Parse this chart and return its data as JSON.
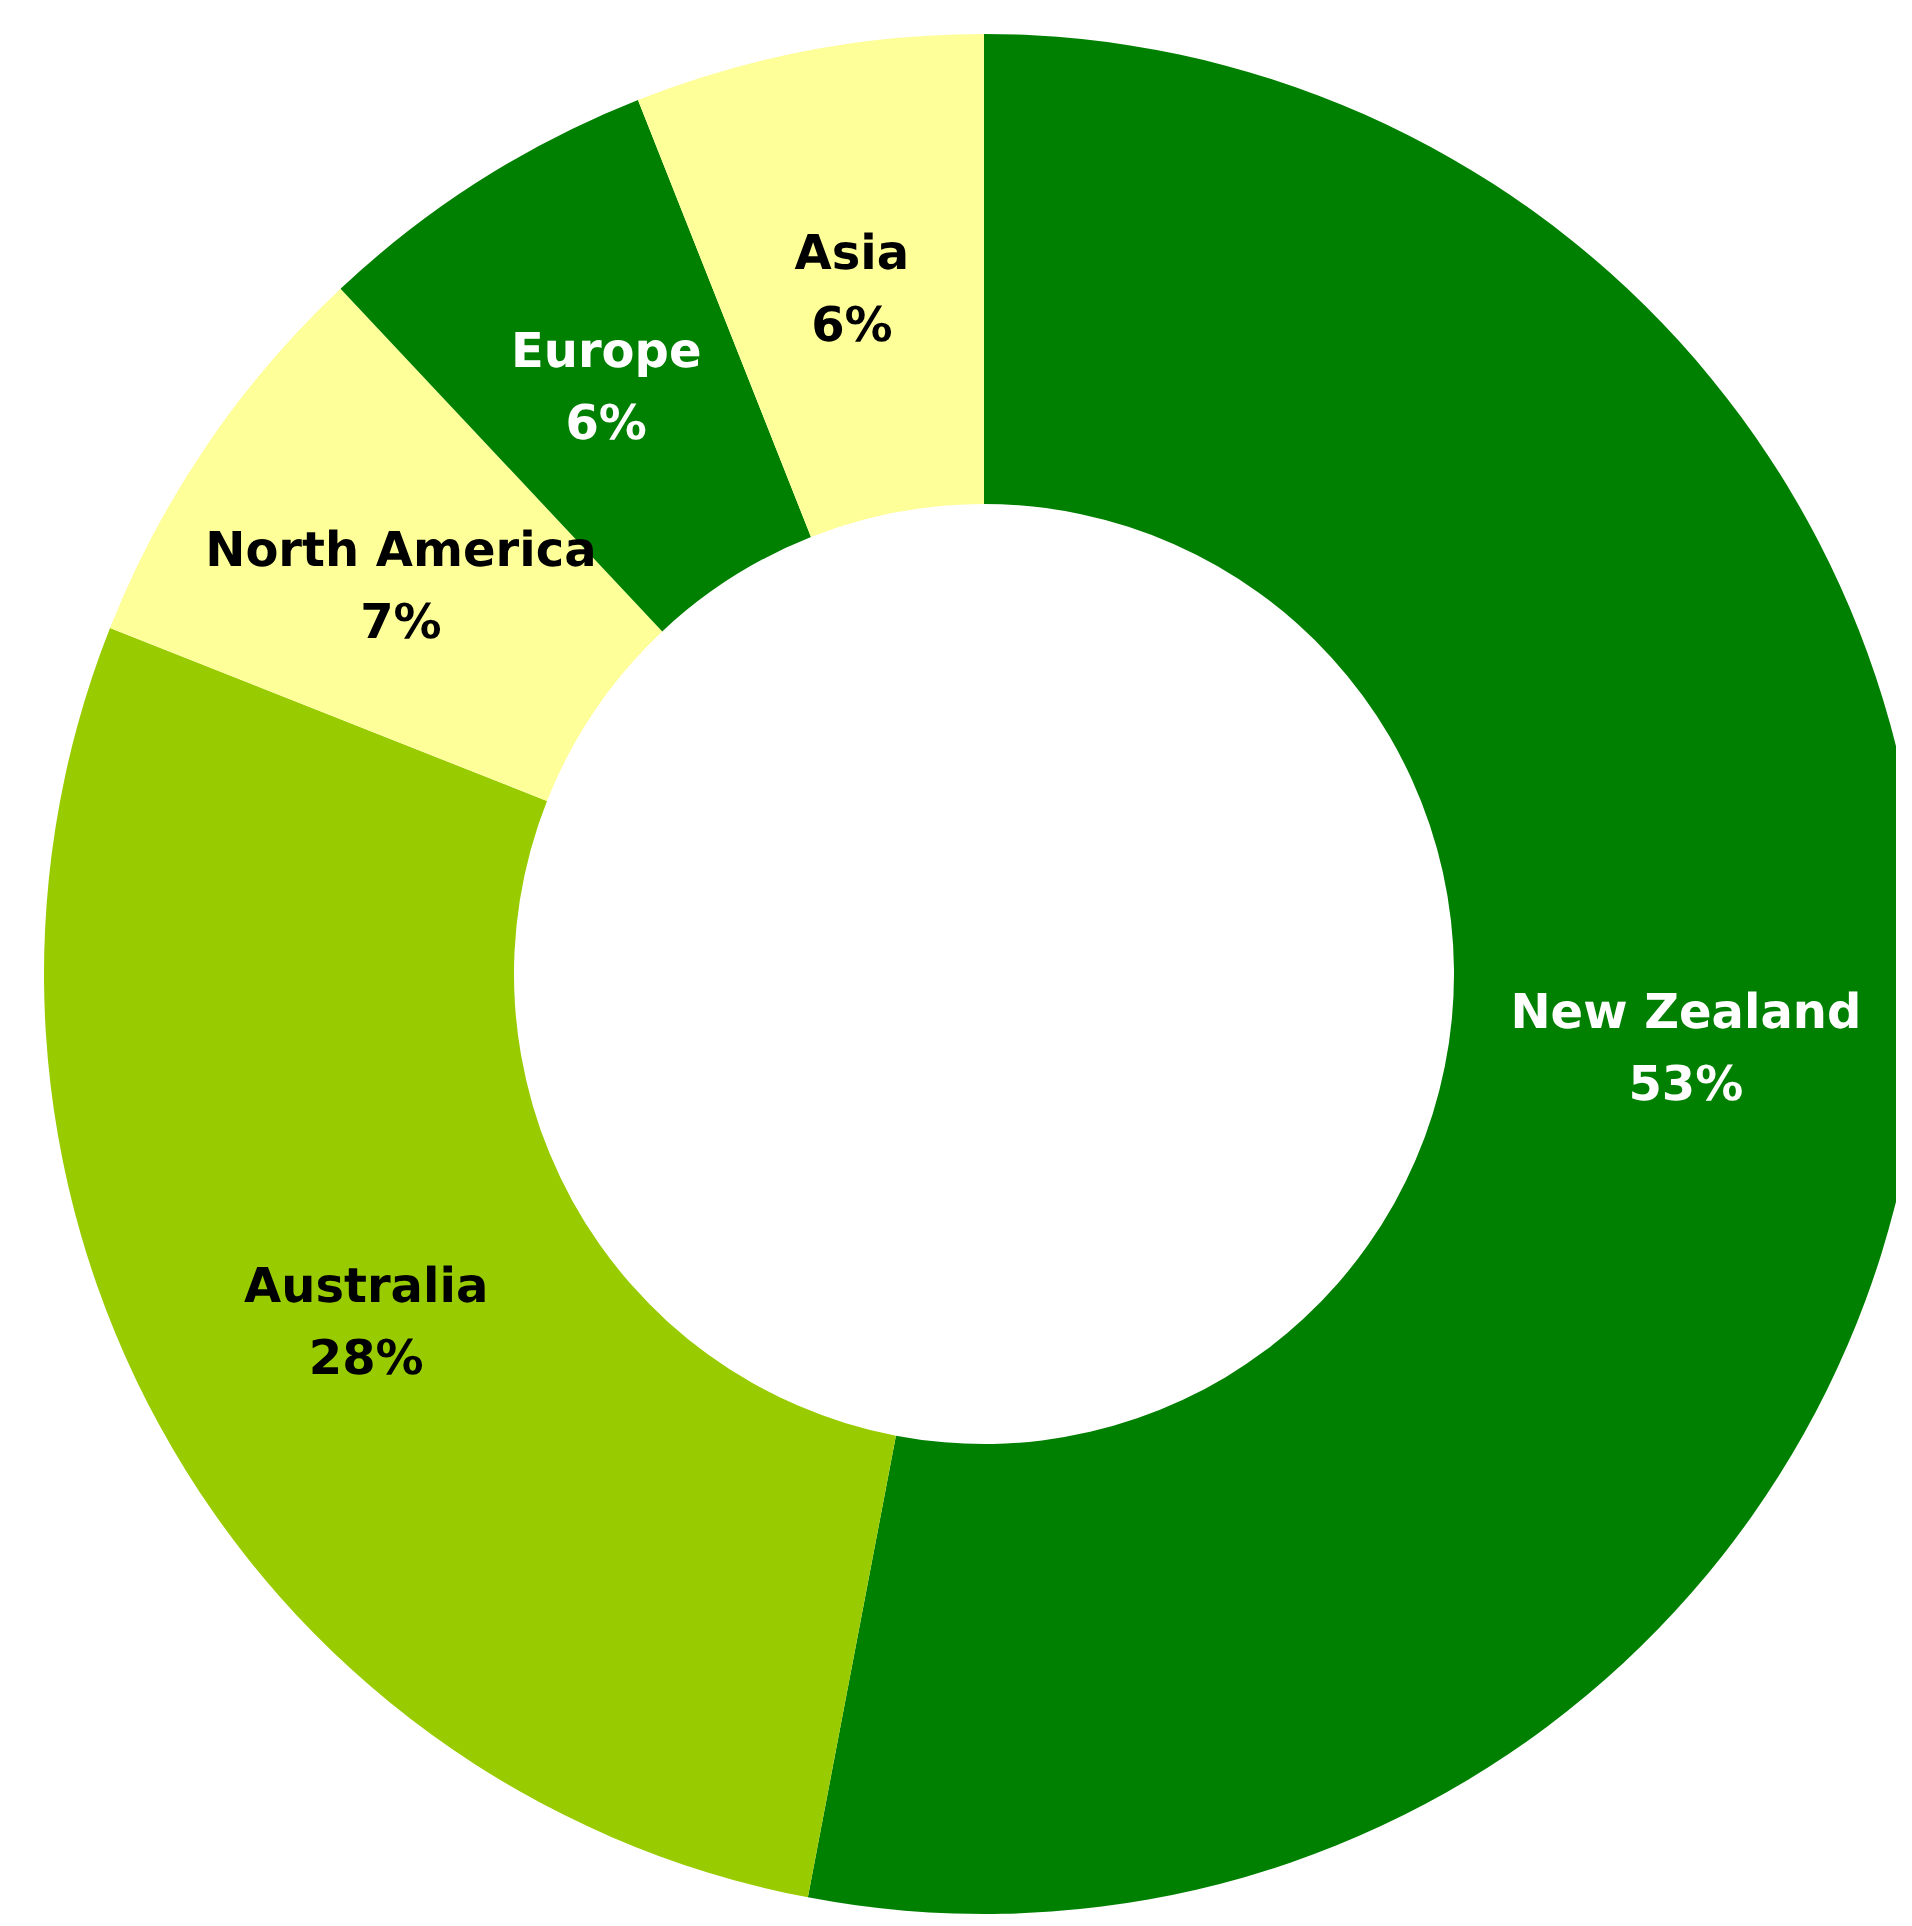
{
  "chart_data": {
    "type": "donut",
    "categories": [
      "New Zealand",
      "Australia",
      "North America",
      "Europe",
      "Asia"
    ],
    "values": [
      53,
      28,
      7,
      6,
      6
    ],
    "value_labels": [
      "53%",
      "28%",
      "7%",
      "6%",
      "6%"
    ],
    "colors": [
      "#008000",
      "#99cc00",
      "#ffff99",
      "#008000",
      "#ffff99"
    ],
    "legend": false
  }
}
